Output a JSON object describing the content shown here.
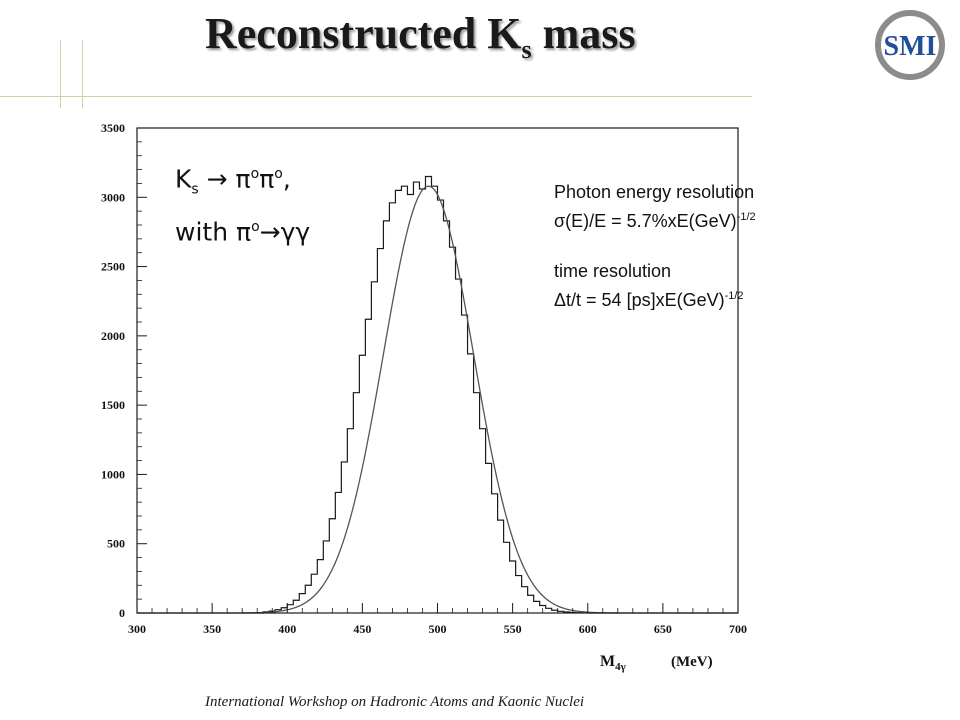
{
  "title": {
    "main": "Reconstructed K",
    "subscript": "s",
    "suffix": " mass"
  },
  "logo": {
    "text": "SMI",
    "ring_color": "#8c8c8c",
    "accent": "#c8102e",
    "brand_blue": "#1f4e9a"
  },
  "decay_label": {
    "line1": {
      "particle": "K",
      "particle_sub": "s",
      "arrow": " → ",
      "pi1": "π",
      "pi1_sup": "o",
      "pi2": "π",
      "pi2_sup": "o",
      "comma": ","
    },
    "line2": {
      "with": "with ",
      "pi": "π",
      "pi_sup": "o",
      "arrow": "→",
      "products": "γγ"
    }
  },
  "info": {
    "energy_title": "Photon energy resolution",
    "energy_formula": "σ(E)/E = 5.7%xE(GeV)",
    "energy_exponent": "-1/2",
    "time_title": "time resolution",
    "time_formula": "Δt/t = 54 [ps]xE(GeV)",
    "time_exponent": "-1/2"
  },
  "footer": "International Workshop on Hadronic Atoms and Kaonic Nuclei",
  "chart_data": {
    "type": "histogram",
    "xlabel": "M",
    "xlabel_sub": "4γ",
    "xlabel_unit": "(MeV)",
    "xlim": [
      300,
      700
    ],
    "ylim": [
      0,
      3500
    ],
    "xticks": [
      300,
      350,
      400,
      450,
      500,
      550,
      600,
      650,
      700
    ],
    "yticks": [
      0,
      500,
      1000,
      1500,
      2000,
      2500,
      3000,
      3500
    ],
    "bin_width": 4,
    "bin_centers": [
      386,
      390,
      394,
      398,
      402,
      406,
      410,
      414,
      418,
      422,
      426,
      430,
      434,
      438,
      442,
      446,
      450,
      454,
      458,
      462,
      466,
      470,
      474,
      478,
      482,
      486,
      490,
      494,
      498,
      502,
      506,
      510,
      514,
      518,
      522,
      526,
      530,
      534,
      538,
      542,
      546,
      550,
      554,
      558,
      562,
      566,
      570,
      574,
      578,
      582,
      586,
      590,
      594,
      598
    ],
    "counts": [
      8,
      14,
      24,
      38,
      60,
      92,
      140,
      200,
      280,
      385,
      520,
      680,
      870,
      1090,
      1330,
      1590,
      1860,
      2120,
      2390,
      2630,
      2830,
      2960,
      3050,
      3080,
      3020,
      3110,
      3060,
      3150,
      3080,
      2980,
      2830,
      2640,
      2410,
      2150,
      1870,
      1590,
      1330,
      1080,
      860,
      670,
      510,
      375,
      270,
      190,
      128,
      84,
      54,
      34,
      20,
      12,
      7,
      4,
      2,
      1
    ],
    "fit": {
      "type": "gaussian",
      "amplitude": 3080,
      "mean": 494,
      "sigma": 30
    },
    "grid": false
  }
}
